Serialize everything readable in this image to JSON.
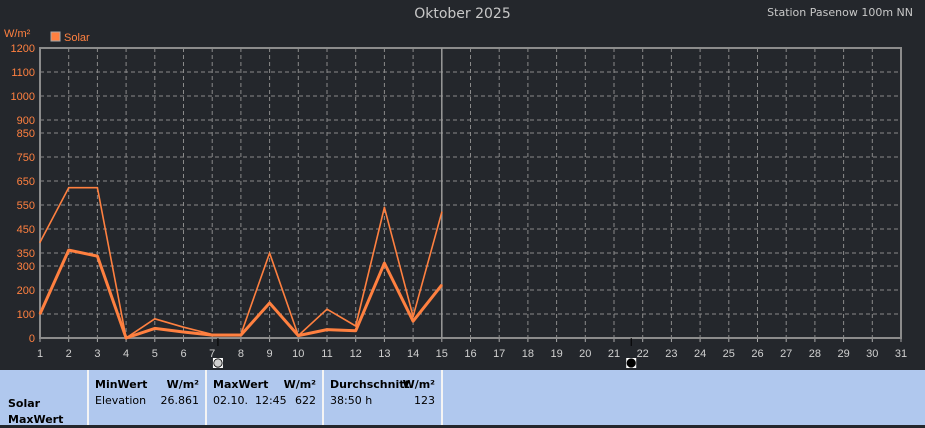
{
  "title": "Oktober 2025",
  "station": "Station Pasenow 100m NN",
  "chart_data": {
    "type": "line",
    "ylabel": "W/m²",
    "legend": [
      {
        "name": "Solar",
        "color": "#ff8040"
      }
    ],
    "legend_placement": "top-left",
    "grid": true,
    "ylim": [
      0,
      1200
    ],
    "y_ticks": [
      0,
      100,
      200,
      300,
      350,
      450,
      550,
      650,
      750,
      850,
      900,
      1000,
      1100,
      1200
    ],
    "x_ticks": [
      1,
      2,
      3,
      4,
      5,
      6,
      7,
      8,
      9,
      10,
      11,
      12,
      13,
      14,
      15,
      16,
      17,
      18,
      19,
      20,
      21,
      22,
      23,
      24,
      25,
      26,
      27,
      28,
      29,
      30,
      31
    ],
    "x": [
      1,
      2,
      3,
      4,
      5,
      6,
      7,
      8,
      9,
      10,
      11,
      12,
      13,
      14,
      15
    ],
    "series": [
      {
        "values": [
          395,
          622,
          622,
          0,
          80,
          45,
          15,
          15,
          350,
          10,
          120,
          50,
          540,
          90,
          520
        ],
        "color": "#ff8040",
        "width": "thin"
      },
      {
        "values": [
          100,
          362,
          338,
          0,
          40,
          25,
          12,
          12,
          146,
          10,
          35,
          30,
          311,
          70,
          221
        ],
        "color": "#ff8040",
        "width": "thick"
      }
    ],
    "current_day": 15,
    "moon_phases": [
      {
        "day": 7.2,
        "phase": "full-moon"
      },
      {
        "day": 21.6,
        "phase": "new-moon"
      }
    ]
  },
  "panel": {
    "row_label_1": "Solar",
    "row_label_2": "MaxWert",
    "min": {
      "header": "MinWert",
      "unit": "W/m²",
      "label": "Elevation",
      "value": "26.861"
    },
    "max": {
      "header": "MaxWert",
      "unit": "W/m²",
      "label": "02.10.  12:45",
      "value": "622"
    },
    "avg": {
      "header": "Durchschnitt",
      "unit": "W/m²",
      "label": "38:50 h",
      "value": "123"
    }
  }
}
